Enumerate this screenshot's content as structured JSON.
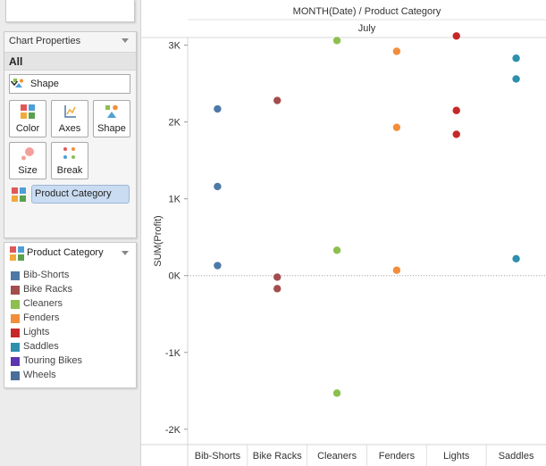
{
  "panel": {
    "props_title": "Chart Properties",
    "all_label": "All",
    "mark_type": "Shape",
    "buttons": [
      {
        "label": "Color",
        "icon": "color-icon"
      },
      {
        "label": "Axes",
        "icon": "axes-icon"
      },
      {
        "label": "Shape",
        "icon": "shape-icon"
      },
      {
        "label": "Size",
        "icon": "size-icon"
      },
      {
        "label": "Break",
        "icon": "break-icon"
      }
    ],
    "color_field": "Product Category"
  },
  "legend": {
    "title": "Product Category",
    "items": [
      {
        "label": "Bib-Shorts",
        "color": "#4e79a7"
      },
      {
        "label": "Bike Racks",
        "color": "#a34d4d"
      },
      {
        "label": "Cleaners",
        "color": "#8cbf4e"
      },
      {
        "label": "Fenders",
        "color": "#f28e3b"
      },
      {
        "label": "Lights",
        "color": "#c62828"
      },
      {
        "label": "Saddles",
        "color": "#2e8fae"
      },
      {
        "label": "Touring Bikes",
        "color": "#5e35b1"
      },
      {
        "label": "Wheels",
        "color": "#4a6d9c"
      }
    ]
  },
  "chart_data": {
    "type": "scatter",
    "header_title": "MONTH(Date) / Product Category",
    "header_sub": "July",
    "ylabel": "SUM(Profit)",
    "ylim": [
      -2200,
      3100
    ],
    "yticks": [
      -2000,
      -1000,
      0,
      1000,
      2000,
      3000
    ],
    "ytick_labels": [
      "-2K",
      "-1K",
      "0K",
      "1K",
      "2K",
      "3K"
    ],
    "categories": [
      "Bib-Shorts",
      "Bike Racks",
      "Cleaners",
      "Fenders",
      "Lights",
      "Saddles"
    ],
    "series": [
      {
        "category": "Bib-Shorts",
        "color": "#4e79a7",
        "values": [
          2170,
          1160,
          130
        ]
      },
      {
        "category": "Bike Racks",
        "color": "#a34d4d",
        "values": [
          2280,
          -20,
          -170
        ]
      },
      {
        "category": "Cleaners",
        "color": "#8cbf4e",
        "values": [
          3060,
          330,
          -1530
        ]
      },
      {
        "category": "Fenders",
        "color": "#f28e3b",
        "values": [
          2920,
          1930,
          70
        ]
      },
      {
        "category": "Lights",
        "color": "#c62828",
        "values": [
          3120,
          2150,
          1840
        ]
      },
      {
        "category": "Saddles",
        "color": "#2e8fae",
        "values": [
          2830,
          2560,
          220
        ]
      }
    ]
  }
}
